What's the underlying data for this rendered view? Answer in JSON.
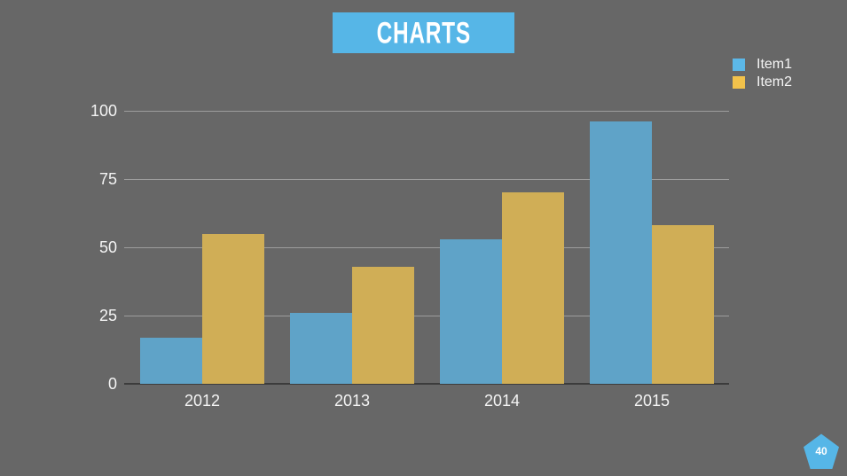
{
  "slide": {
    "title": "CHARTS",
    "page_number": "40",
    "background_color": "#676767",
    "accent_color": "#56b6e7"
  },
  "legend": {
    "position": "top-right",
    "items": [
      {
        "label": "Item1",
        "color": "#5cb8e8"
      },
      {
        "label": "Item2",
        "color": "#f2c24b"
      }
    ]
  },
  "chart_data": {
    "type": "bar",
    "title": "CHARTS",
    "categories": [
      "2012",
      "2013",
      "2014",
      "2015"
    ],
    "series": [
      {
        "name": "Item1",
        "color": "#5fa3c8",
        "values": [
          17,
          26,
          53,
          96
        ]
      },
      {
        "name": "Item2",
        "color": "#d0ae56",
        "values": [
          55,
          43,
          70,
          58
        ]
      }
    ],
    "xlabel": "",
    "ylabel": "",
    "yticks": [
      0,
      25,
      50,
      75,
      100
    ],
    "ylim": [
      0,
      100
    ],
    "grid": true,
    "gridline_color": "#9d9d9d",
    "axis_line_color": "#3c3c3c",
    "legend_position": "top-right"
  }
}
